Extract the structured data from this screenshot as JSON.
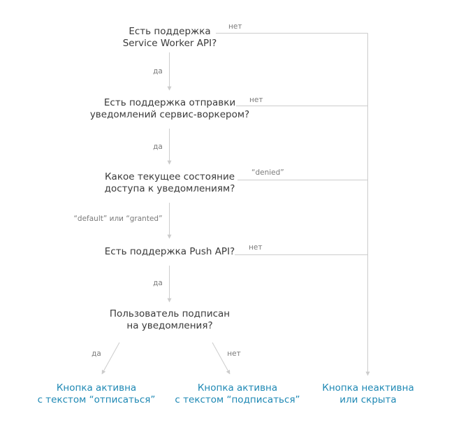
{
  "questions": [
    {
      "id": "q1",
      "lines": [
        "Есть поддержка",
        "Service Worker API?"
      ]
    },
    {
      "id": "q2",
      "lines": [
        "Есть поддержка отправки",
        "уведомлений сервис-воркером?"
      ]
    },
    {
      "id": "q3",
      "lines": [
        "Какое текущее состояние",
        "доступа к уведомлениям?"
      ]
    },
    {
      "id": "q4",
      "lines": [
        "Есть поддержка Push API?"
      ]
    },
    {
      "id": "q5",
      "lines": [
        "Пользователь подписан",
        "на уведомления?"
      ]
    }
  ],
  "results": [
    {
      "id": "r1",
      "lines": [
        "Кнопка активна",
        "с текстом “отписаться”"
      ]
    },
    {
      "id": "r2",
      "lines": [
        "Кнопка активна",
        "с текстом “подписаться”"
      ]
    },
    {
      "id": "r3",
      "lines": [
        "Кнопка неактивна",
        "или скрыта"
      ]
    }
  ],
  "edge_labels": {
    "q1_no": "нет",
    "q1_yes": "да",
    "q2_no": "нет",
    "q2_yes": "да",
    "q3_denied": "“denied”",
    "q3_default_granted": "“default” или “granted”",
    "q4_no": "нет",
    "q4_yes": "да",
    "q5_yes": "да",
    "q5_no": "нет"
  },
  "colors": {
    "question_text": "#3a3a3a",
    "result_text": "#1e88b4",
    "edge_label_text": "#7a7a7a",
    "connector": "#cccccc"
  }
}
